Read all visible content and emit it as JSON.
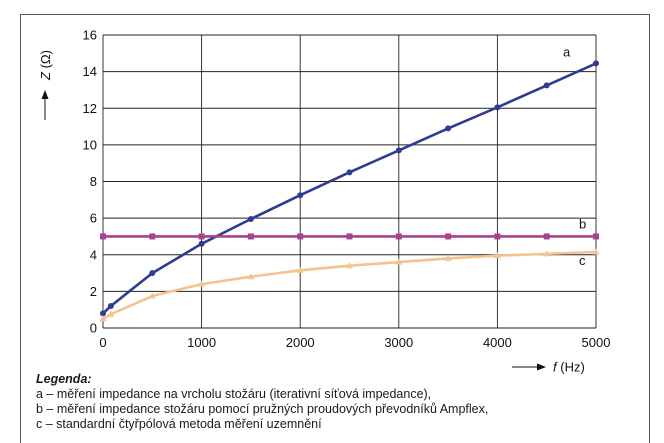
{
  "chart_data": {
    "type": "line",
    "title": "",
    "xlabel": {
      "italic": "f",
      "unit": "(Hz)"
    },
    "ylabel": {
      "italic": "Z",
      "unit": "(Ω)"
    },
    "xlim": [
      0,
      5000
    ],
    "ylim": [
      0,
      16
    ],
    "xticks": [
      0,
      1000,
      2000,
      3000,
      4000,
      5000
    ],
    "yticks": [
      0,
      2,
      4,
      6,
      8,
      10,
      12,
      14,
      16
    ],
    "grid": true,
    "series": [
      {
        "name": "a",
        "color": "#2e3d8f",
        "marker": "circle",
        "points": [
          [
            0,
            0.8
          ],
          [
            80,
            1.2
          ],
          [
            500,
            3.0
          ],
          [
            1000,
            4.6
          ],
          [
            1500,
            5.95
          ],
          [
            2000,
            7.25
          ],
          [
            2500,
            8.5
          ],
          [
            3000,
            9.7
          ],
          [
            3500,
            10.9
          ],
          [
            4000,
            12.05
          ],
          [
            4500,
            13.25
          ],
          [
            5000,
            14.45
          ]
        ]
      },
      {
        "name": "b",
        "color": "#a8418f",
        "marker": "square",
        "points": [
          [
            0,
            5.0
          ],
          [
            500,
            5.0
          ],
          [
            1000,
            5.0
          ],
          [
            1500,
            5.0
          ],
          [
            2000,
            5.0
          ],
          [
            2500,
            5.0
          ],
          [
            3000,
            5.0
          ],
          [
            3500,
            5.0
          ],
          [
            4000,
            5.0
          ],
          [
            4500,
            5.0
          ],
          [
            5000,
            5.0
          ]
        ]
      },
      {
        "name": "c",
        "color": "#f5c38f",
        "marker": "triangle",
        "points": [
          [
            0,
            0.5
          ],
          [
            80,
            0.75
          ],
          [
            500,
            1.75
          ],
          [
            1000,
            2.4
          ],
          [
            1500,
            2.8
          ],
          [
            2000,
            3.15
          ],
          [
            2500,
            3.4
          ],
          [
            3000,
            3.6
          ],
          [
            3500,
            3.8
          ],
          [
            4000,
            3.95
          ],
          [
            4500,
            4.05
          ],
          [
            5000,
            4.15
          ]
        ]
      }
    ]
  },
  "legend": {
    "heading": "Legenda:",
    "line_a": "a – měření impedance na vrcholu stožáru (iterativní síťová impedance),",
    "line_b": "b – měření impedance stožáru pomocí pružných proudových převodníků Ampflex,",
    "line_c": "c – standardní čtyřpólová metoda měření uzemnění"
  }
}
